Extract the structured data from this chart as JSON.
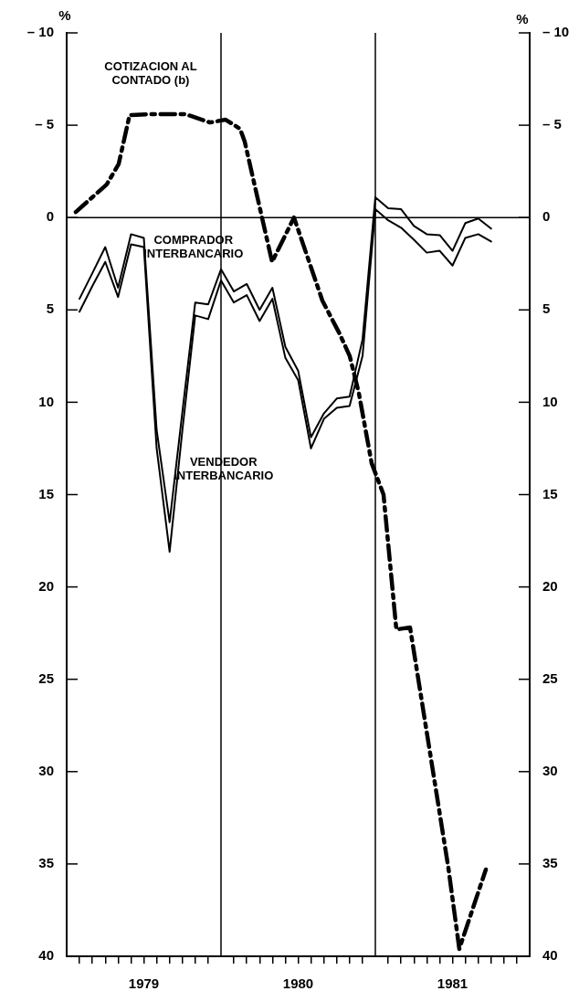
{
  "chart_data": {
    "type": "line",
    "ylabel": "%",
    "y2label": "%",
    "xlim": [
      1979,
      1982
    ],
    "xticks": [
      {
        "value": 1979.083,
        "label": null
      },
      {
        "value": 1979.167,
        "label": null
      },
      {
        "value": 1979.25,
        "label": null
      },
      {
        "value": 1979.333,
        "label": null
      },
      {
        "value": 1979.417,
        "label": null
      },
      {
        "value": 1979.5,
        "label": "1979"
      },
      {
        "value": 1979.583,
        "label": null
      },
      {
        "value": 1979.667,
        "label": null
      },
      {
        "value": 1979.75,
        "label": null
      },
      {
        "value": 1979.833,
        "label": null
      },
      {
        "value": 1979.917,
        "label": null
      },
      {
        "value": 1980.083,
        "label": null
      },
      {
        "value": 1980.167,
        "label": null
      },
      {
        "value": 1980.25,
        "label": null
      },
      {
        "value": 1980.333,
        "label": null
      },
      {
        "value": 1980.417,
        "label": null
      },
      {
        "value": 1980.5,
        "label": "1980"
      },
      {
        "value": 1980.583,
        "label": null
      },
      {
        "value": 1980.667,
        "label": null
      },
      {
        "value": 1980.75,
        "label": null
      },
      {
        "value": 1980.833,
        "label": null
      },
      {
        "value": 1980.917,
        "label": null
      },
      {
        "value": 1981.083,
        "label": null
      },
      {
        "value": 1981.167,
        "label": null
      },
      {
        "value": 1981.25,
        "label": null
      },
      {
        "value": 1981.333,
        "label": null
      },
      {
        "value": 1981.417,
        "label": null
      },
      {
        "value": 1981.5,
        "label": "1981"
      },
      {
        "value": 1981.583,
        "label": null
      },
      {
        "value": 1981.667,
        "label": null
      },
      {
        "value": 1981.75,
        "label": null
      },
      {
        "value": 1981.833,
        "label": null
      },
      {
        "value": 1981.917,
        "label": null
      }
    ],
    "ylim": [
      40,
      -10
    ],
    "yticks": [
      {
        "value": -10,
        "label": "– 10"
      },
      {
        "value": -5,
        "label": "– 5"
      },
      0,
      5,
      10,
      15,
      20,
      25,
      30,
      35,
      40
    ],
    "y2lim": [
      40,
      -10
    ],
    "y2ticks": [
      {
        "value": -10,
        "label": "– 10"
      },
      {
        "value": -5,
        "label": "– 5"
      },
      0,
      5,
      10,
      15,
      20,
      25,
      30,
      35,
      40
    ],
    "grid": false,
    "legend": false,
    "marker": "none",
    "ref_lines": [
      {
        "axis": "x",
        "value": 1980,
        "color": "#000000"
      },
      {
        "axis": "x",
        "value": 1981,
        "color": "#000000"
      },
      {
        "axis": "y",
        "value": 0,
        "color": "#000000"
      }
    ],
    "series": [
      {
        "name": "COTIZACION AL CONTADO (b)",
        "color": "#000000",
        "line_style": "dashed",
        "x": [
          1979.059,
          1979.26,
          1979.337,
          1979.408,
          1979.544,
          1979.769,
          1979.929,
          1980.03,
          1980.124,
          1980.154,
          1980.331,
          1980.473,
          1980.657,
          1980.769,
          1980.834,
          1980.893,
          1980.976,
          1981.053,
          1981.136,
          1981.225,
          1981.473,
          1981.544,
          1981.568,
          1981.716
        ],
        "values": [
          -0.3,
          -1.8,
          -2.9,
          -5.55,
          -5.6,
          -5.6,
          -5.15,
          -5.3,
          -4.8,
          -4.1,
          2.4,
          0.0,
          4.5,
          6.3,
          7.5,
          9.5,
          13.3,
          15.0,
          22.3,
          22.2,
          35.2,
          39.6,
          39.0,
          35.3
        ]
      },
      {
        "name": "COMPRADOR INTERBANCARIO",
        "color": "#000000",
        "line_style": "solid",
        "x": [
          1979.083,
          1979.167,
          1979.25,
          1979.333,
          1979.417,
          1979.5,
          1979.583,
          1979.667,
          1979.75,
          1979.833,
          1979.917,
          1980.0,
          1980.083,
          1980.167,
          1980.25,
          1980.333,
          1980.417,
          1980.5,
          1980.583,
          1980.667,
          1980.75,
          1980.833,
          1980.917,
          1981.0,
          1981.083,
          1981.167,
          1981.25,
          1981.333,
          1981.417,
          1981.5,
          1981.583,
          1981.667,
          1981.75
        ],
        "values": [
          4.4,
          3.0,
          1.6,
          3.8,
          0.9,
          1.1,
          11.5,
          16.5,
          10.5,
          4.6,
          4.7,
          2.8,
          4.0,
          3.6,
          5.0,
          3.8,
          7.0,
          8.3,
          11.9,
          10.6,
          9.8,
          9.7,
          6.6,
          -1.1,
          -0.5,
          -0.45,
          0.45,
          0.9,
          0.95,
          1.8,
          0.3,
          0.05,
          0.6
        ]
      },
      {
        "name": "VENDEDOR INTERBANCARIO",
        "color": "#000000",
        "line_style": "solid",
        "x": [
          1979.083,
          1979.167,
          1979.25,
          1979.333,
          1979.417,
          1979.5,
          1979.583,
          1979.667,
          1979.75,
          1979.833,
          1979.917,
          1980.0,
          1980.083,
          1980.167,
          1980.25,
          1980.333,
          1980.417,
          1980.5,
          1980.583,
          1980.667,
          1980.75,
          1980.833,
          1980.917,
          1981.0,
          1981.083,
          1981.167,
          1981.25,
          1981.333,
          1981.417,
          1981.5,
          1981.583,
          1981.667,
          1981.75
        ],
        "values": [
          5.1,
          3.7,
          2.4,
          4.3,
          1.45,
          1.6,
          12.5,
          18.1,
          11.5,
          5.3,
          5.5,
          3.4,
          4.6,
          4.2,
          5.6,
          4.4,
          7.6,
          8.8,
          12.5,
          10.9,
          10.3,
          10.2,
          7.5,
          -0.45,
          0.15,
          0.55,
          1.2,
          1.9,
          1.8,
          2.6,
          1.1,
          0.9,
          1.3
        ]
      }
    ]
  }
}
